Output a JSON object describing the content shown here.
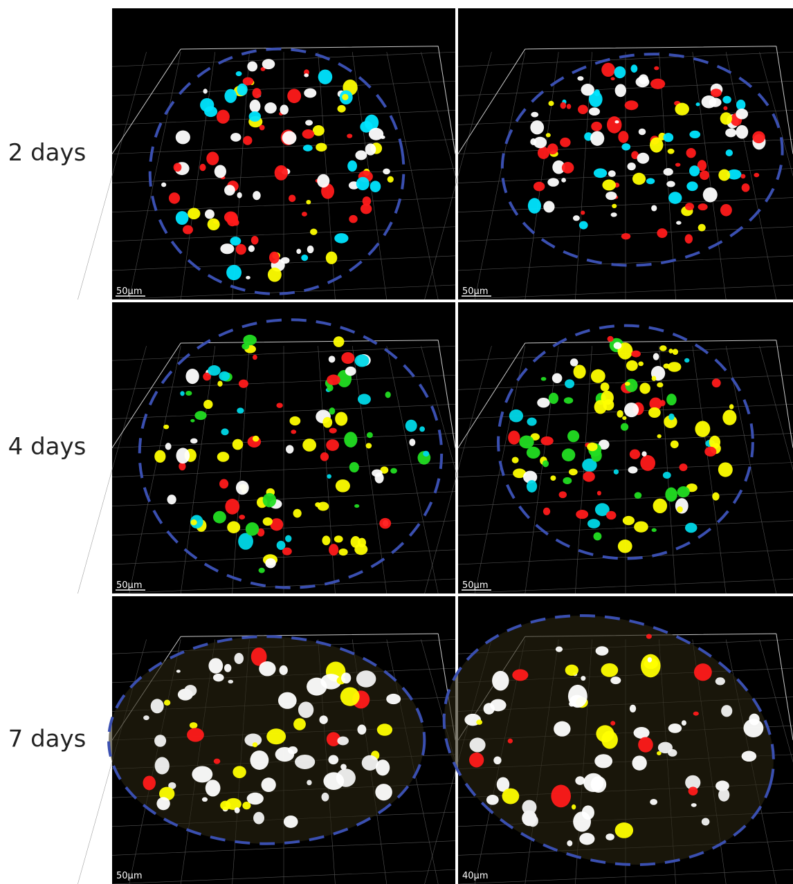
{
  "rows": [
    {
      "label": "2 days",
      "panels": [
        {
          "scale_bar": "50µm"
        },
        {
          "scale_bar": "50µm"
        }
      ]
    },
    {
      "label": "4 days",
      "panels": [
        {
          "scale_bar": "50µm"
        },
        {
          "scale_bar": "50µm"
        }
      ]
    },
    {
      "label": "7 days",
      "panels": [
        {
          "scale_bar": "50µm"
        },
        {
          "scale_bar": "40µm"
        }
      ]
    }
  ]
}
